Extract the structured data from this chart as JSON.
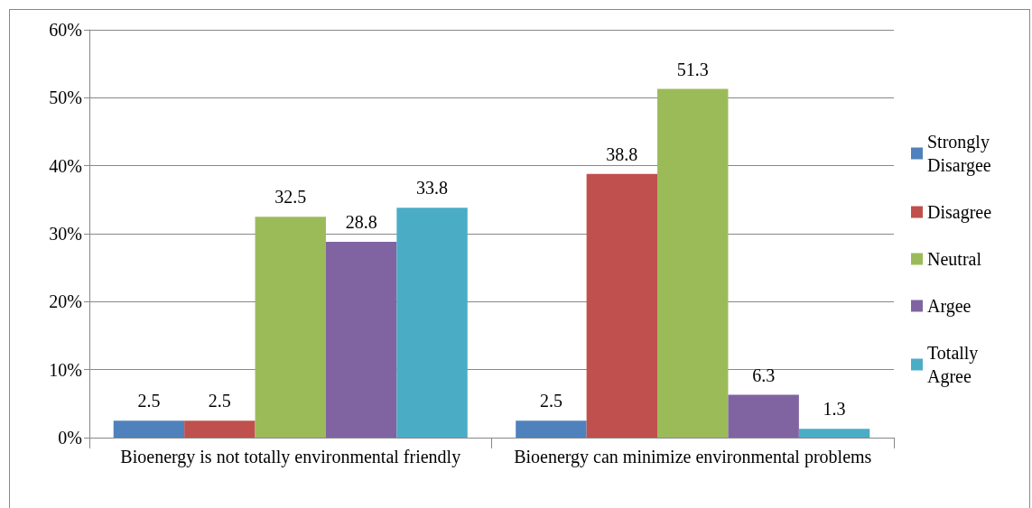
{
  "chart_data": {
    "type": "bar",
    "categories": [
      "Bioenergy is not totally environmental friendly",
      "Bioenergy can minimize environmental problems"
    ],
    "series": [
      {
        "name": "Strongly Disargee",
        "color": "#4f81bd",
        "values": [
          2.5,
          2.5
        ]
      },
      {
        "name": "Disagree",
        "color": "#c0504d",
        "values": [
          2.5,
          38.8
        ]
      },
      {
        "name": "Neutral",
        "color": "#9bbb59",
        "values": [
          32.5,
          51.3
        ]
      },
      {
        "name": "Argee",
        "color": "#8064a2",
        "values": [
          28.8,
          6.3
        ]
      },
      {
        "name": "Totally Agree",
        "color": "#4bacc6",
        "values": [
          33.8,
          1.3
        ]
      }
    ],
    "ylim": [
      0,
      60
    ],
    "yticks": [
      {
        "value": 0,
        "label": "0%"
      },
      {
        "value": 10,
        "label": "10%"
      },
      {
        "value": 20,
        "label": "20%"
      },
      {
        "value": 30,
        "label": "30%"
      },
      {
        "value": 40,
        "label": "40%"
      },
      {
        "value": 50,
        "label": "50%"
      },
      {
        "value": 60,
        "label": "60%"
      }
    ],
    "grid": "y",
    "legend": "right",
    "data_labels": true
  }
}
